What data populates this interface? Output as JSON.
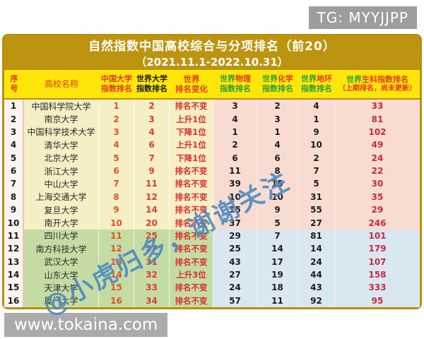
{
  "colors": {
    "frame_gold": "#b8900f",
    "title_bar_gold": "#bd9410",
    "header_yellow": "#ffe60a",
    "header_red": "#e03a1e",
    "header_green": "#2e9e3c",
    "group1_left_bg": "#f6eec4",
    "group2_left_bg": "#c4dca3",
    "group1_right_bg": "#f8dcd2",
    "group2_right_bg": "#d9e7f0",
    "rank_number_red": "#d8402c",
    "life_rank_red": "#c52b3c",
    "watermark_blue": "#3e7eba",
    "badge_gray": "#9d9d9d"
  },
  "badges": {
    "tg": "TG: MYYJJPP",
    "site": "www.tokaina.com"
  },
  "watermark": "@小虎归多，谢谢关注",
  "chart_data": {
    "type": "table",
    "title": "自然指数中国高校综合与分项排名（前20）",
    "subtitle": "（2021.11.1-2022.10.31）",
    "columns": [
      {
        "line1": "序",
        "line2": "号"
      },
      {
        "line1": "高校名称"
      },
      {
        "line1": "中国大学",
        "line2": "指数排名"
      },
      {
        "line1": "世界大学",
        "line2": "指数排名"
      },
      {
        "line1": "世界",
        "line2": "排名变化"
      },
      {
        "prefix": "世界",
        "subject": "物理",
        "line2": "指数排名"
      },
      {
        "prefix": "世界",
        "subject": "化学",
        "line2": "指数排名"
      },
      {
        "prefix": "世界",
        "subject": "地环",
        "line2": "指数排名"
      },
      {
        "prefix": "世界",
        "subject": "生科",
        "suffix": "指数排名",
        "line2": "（上期排名，尚未更新）"
      }
    ],
    "rows": [
      {
        "no": "1",
        "name": "中国科学院大学",
        "cn": "1",
        "world": "2",
        "change": "排名不变",
        "phy": "3",
        "chem": "2",
        "earth": "4",
        "life": "33"
      },
      {
        "no": "2",
        "name": "南京大学",
        "cn": "2",
        "world": "3",
        "change": "上升1位",
        "phy": "4",
        "chem": "3",
        "earth": "1",
        "life": "81"
      },
      {
        "no": "3",
        "name": "中国科学技术大学",
        "cn": "3",
        "world": "4",
        "change": "下降1位",
        "phy": "1",
        "chem": "1",
        "earth": "9",
        "life": "102"
      },
      {
        "no": "4",
        "name": "清华大学",
        "cn": "4",
        "world": "6",
        "change": "上升1位",
        "phy": "2",
        "chem": "4",
        "earth": "10",
        "life": "49"
      },
      {
        "no": "5",
        "name": "北京大学",
        "cn": "5",
        "world": "7",
        "change": "下降1位",
        "phy": "6",
        "chem": "6",
        "earth": "2",
        "life": "24"
      },
      {
        "no": "6",
        "name": "浙江大学",
        "cn": "6",
        "world": "9",
        "change": "排名不变",
        "phy": "11",
        "chem": "8",
        "earth": "7",
        "life": "22"
      },
      {
        "no": "7",
        "name": "中山大学",
        "cn": "7",
        "world": "11",
        "change": "排名不变",
        "phy": "39",
        "chem": "15",
        "earth": "5",
        "life": "30"
      },
      {
        "no": "8",
        "name": "上海交通大学",
        "cn": "8",
        "world": "12",
        "change": "排名不变",
        "phy": "10",
        "chem": "10",
        "earth": "31",
        "life": "35"
      },
      {
        "no": "9",
        "name": "复旦大学",
        "cn": "9",
        "world": "14",
        "change": "排名不变",
        "phy": "15",
        "chem": "9",
        "earth": "55",
        "life": "29"
      },
      {
        "no": "10",
        "name": "南开大学",
        "cn": "10",
        "world": "20",
        "change": "排名不变",
        "phy": "37",
        "chem": "5",
        "earth": "27",
        "life": "246"
      },
      {
        "no": "11",
        "name": "四川大学",
        "cn": "11",
        "world": "25",
        "change": "排名不变",
        "phy": "29",
        "chem": "7",
        "earth": "81",
        "life": "101"
      },
      {
        "no": "12",
        "name": "南方科技大学",
        "cn": "12",
        "world": "27",
        "change": "排名不变",
        "phy": "25",
        "chem": "14",
        "earth": "14",
        "life": "179"
      },
      {
        "no": "13",
        "name": "武汉大学",
        "cn": "13",
        "world": "31",
        "change": "排名不变",
        "phy": "43",
        "chem": "17",
        "earth": "24",
        "life": "107"
      },
      {
        "no": "14",
        "name": "山东大学",
        "cn": "14",
        "world": "32",
        "change": "上升3位",
        "phy": "27",
        "chem": "19",
        "earth": "44",
        "life": "158"
      },
      {
        "no": "15",
        "name": "天津大学",
        "cn": "15",
        "world": "33",
        "change": "排名不变",
        "phy": "24",
        "chem": "18",
        "earth": "43",
        "life": "333"
      },
      {
        "no": "16",
        "name": "厦门大学",
        "cn": "16",
        "world": "34",
        "change": "排名不变",
        "phy": "57",
        "chem": "11",
        "earth": "92",
        "life": "95"
      }
    ]
  }
}
